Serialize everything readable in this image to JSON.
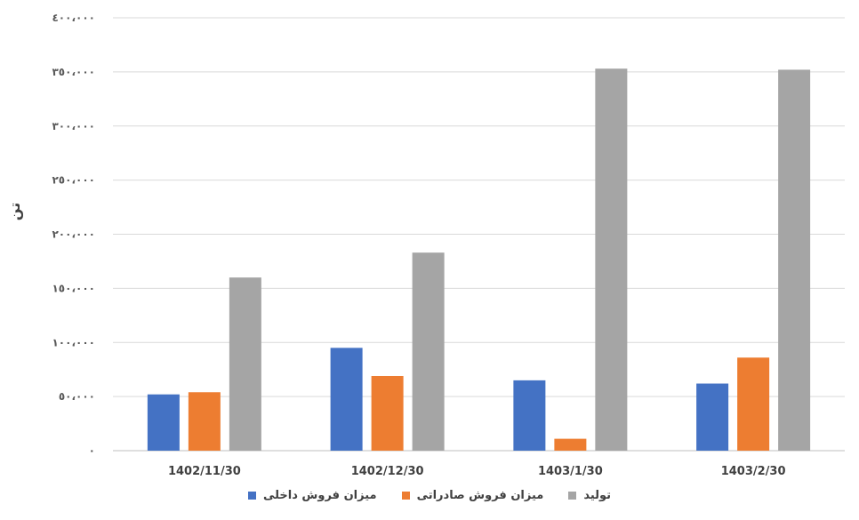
{
  "chart_data": {
    "type": "bar",
    "title": "",
    "xlabel": "",
    "ylabel": "تن",
    "ylim": [
      0,
      400000
    ],
    "yticks": [
      0,
      50000,
      100000,
      150000,
      200000,
      250000,
      300000,
      350000,
      400000
    ],
    "ytick_labels": [
      "٠",
      "٥٠،٠٠٠",
      "١٠٠،٠٠٠",
      "١٥٠،٠٠٠",
      "٢٠٠،٠٠٠",
      "٢٥٠،٠٠٠",
      "٣٠٠،٠٠٠",
      "٣٥٠،٠٠٠",
      "٤٠٠،٠٠٠"
    ],
    "categories": [
      "1402/11/30",
      "1402/12/30",
      "1403/1/30",
      "1403/2/30"
    ],
    "series": [
      {
        "name": "میزان فروش داخلی",
        "color": "#4472C4",
        "values": [
          52000,
          95000,
          65000,
          62000
        ]
      },
      {
        "name": "میزان فروش صادراتی",
        "color": "#ED7D31",
        "values": [
          54000,
          69000,
          11000,
          86000
        ]
      },
      {
        "name": "تولید",
        "color": "#A5A5A5",
        "values": [
          160000,
          183000,
          353000,
          352000
        ]
      }
    ],
    "grid": true,
    "legend_position": "bottom"
  }
}
